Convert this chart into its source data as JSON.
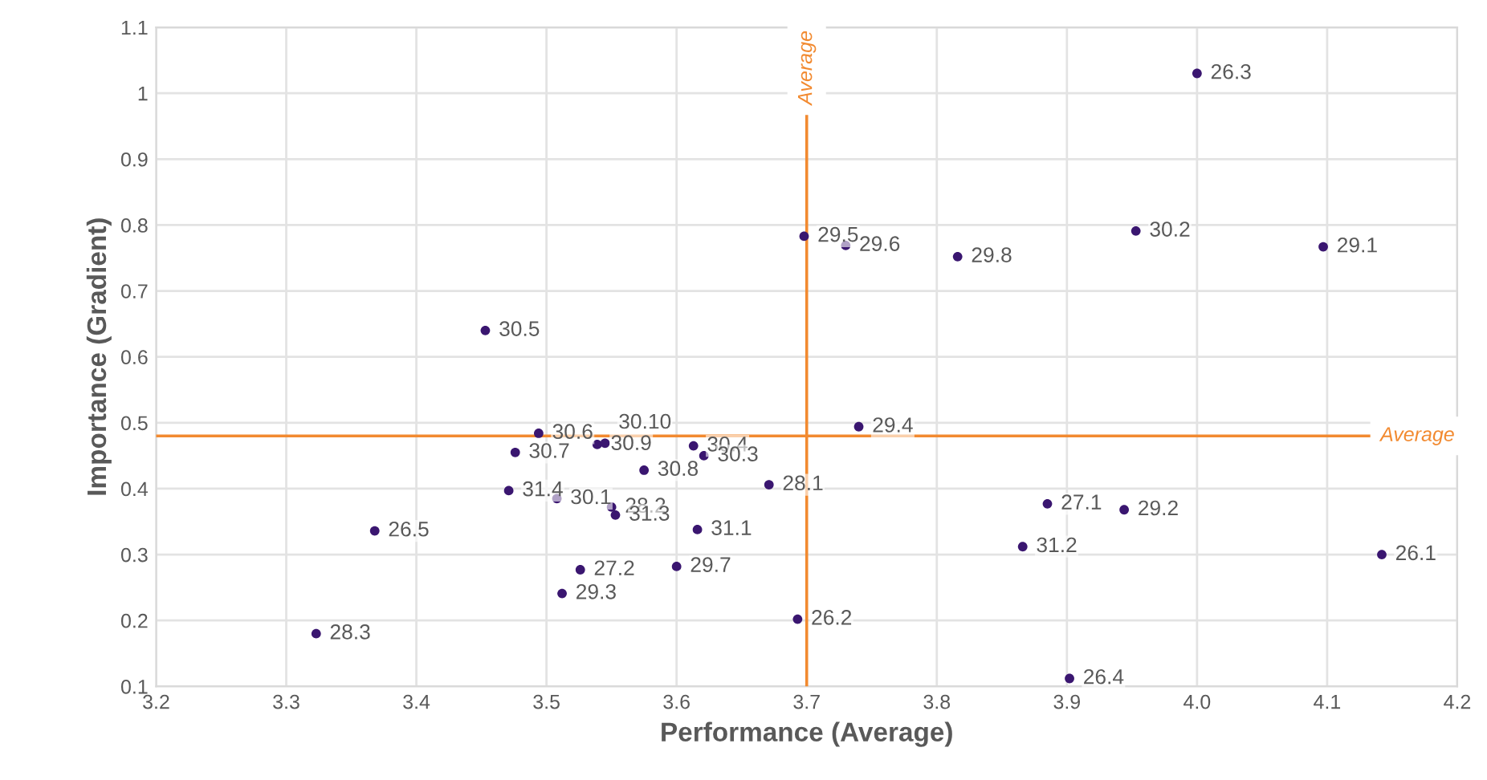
{
  "chart_data": {
    "type": "scatter",
    "xlabel": "Performance (Average)",
    "ylabel": "Importance (Gradient)",
    "xlim": [
      3.2,
      4.2
    ],
    "xticks": [
      {
        "value": 3.2,
        "label": "3.2"
      },
      {
        "value": 3.3,
        "label": "3.3"
      },
      {
        "value": 3.4,
        "label": "3.4"
      },
      {
        "value": 3.5,
        "label": "3.5"
      },
      {
        "value": 3.6,
        "label": "3.6"
      },
      {
        "value": 3.7,
        "label": "3.7"
      },
      {
        "value": 3.8,
        "label": "3.8"
      },
      {
        "value": 3.9,
        "label": "3.9"
      },
      {
        "value": 4.0,
        "label": "4.0"
      },
      {
        "value": 4.1,
        "label": "4.1"
      },
      {
        "value": 4.2,
        "label": "4.2"
      }
    ],
    "ylim": [
      0.1,
      1.1
    ],
    "yticks": [
      0.1,
      0.2,
      0.3,
      0.4,
      0.5,
      0.6,
      0.7,
      0.8,
      0.9,
      1,
      1.1
    ],
    "grid": true,
    "marker": "circle",
    "series": [
      {
        "color": "#3a1670",
        "x": [
          4.0,
          3.953,
          4.097,
          3.698,
          3.73,
          3.816,
          3.453,
          3.74,
          3.494,
          3.539,
          3.545,
          3.476,
          3.613,
          3.621,
          3.575,
          3.671,
          3.471,
          3.508,
          3.55,
          3.553,
          3.616,
          3.368,
          3.526,
          3.6,
          3.512,
          3.323,
          3.693,
          3.885,
          3.944,
          3.866,
          4.142,
          3.902
        ],
        "values": [
          1.03,
          0.791,
          0.767,
          0.783,
          0.769,
          0.752,
          0.64,
          0.494,
          0.484,
          0.467,
          0.469,
          0.455,
          0.465,
          0.45,
          0.428,
          0.406,
          0.397,
          0.385,
          0.372,
          0.36,
          0.338,
          0.336,
          0.277,
          0.282,
          0.241,
          0.18,
          0.202,
          0.377,
          0.368,
          0.312,
          0.3,
          0.112
        ]
      }
    ],
    "annotations": [
      {
        "text": "26.3",
        "x": 4.0,
        "y": 1.03
      },
      {
        "text": "30.2",
        "x": 3.953,
        "y": 0.791
      },
      {
        "text": "29.1",
        "x": 4.097,
        "y": 0.767
      },
      {
        "text": "29.5",
        "x": 3.698,
        "y": 0.783
      },
      {
        "text": "29.6",
        "x": 3.73,
        "y": 0.769
      },
      {
        "text": "29.8",
        "x": 3.816,
        "y": 0.752
      },
      {
        "text": "30.5",
        "x": 3.453,
        "y": 0.64
      },
      {
        "text": "29.4",
        "x": 3.74,
        "y": 0.494
      },
      {
        "text": "30.6",
        "x": 3.494,
        "y": 0.484
      },
      {
        "text": "30.9",
        "x": 3.539,
        "y": 0.467
      },
      {
        "text": "30.10",
        "x": 3.545,
        "y": 0.469
      },
      {
        "text": "30.7",
        "x": 3.476,
        "y": 0.455
      },
      {
        "text": "30.4",
        "x": 3.613,
        "y": 0.465
      },
      {
        "text": "30.3",
        "x": 3.621,
        "y": 0.45
      },
      {
        "text": "30.8",
        "x": 3.575,
        "y": 0.428
      },
      {
        "text": "28.1",
        "x": 3.671,
        "y": 0.406
      },
      {
        "text": "31.4",
        "x": 3.471,
        "y": 0.397
      },
      {
        "text": "30.1",
        "x": 3.508,
        "y": 0.385
      },
      {
        "text": "28.2",
        "x": 3.55,
        "y": 0.372
      },
      {
        "text": "31.3",
        "x": 3.553,
        "y": 0.36
      },
      {
        "text": "31.1",
        "x": 3.616,
        "y": 0.338
      },
      {
        "text": "26.5",
        "x": 3.368,
        "y": 0.336
      },
      {
        "text": "27.2",
        "x": 3.526,
        "y": 0.277
      },
      {
        "text": "29.7",
        "x": 3.6,
        "y": 0.282
      },
      {
        "text": "29.3",
        "x": 3.512,
        "y": 0.241
      },
      {
        "text": "28.3",
        "x": 3.323,
        "y": 0.18
      },
      {
        "text": "26.2",
        "x": 3.693,
        "y": 0.202
      },
      {
        "text": "27.1",
        "x": 3.885,
        "y": 0.377
      },
      {
        "text": "29.2",
        "x": 3.944,
        "y": 0.368
      },
      {
        "text": "31.2",
        "x": 3.866,
        "y": 0.312
      },
      {
        "text": "26.1",
        "x": 4.142,
        "y": 0.3
      },
      {
        "text": "26.4",
        "x": 3.902,
        "y": 0.112
      }
    ],
    "ref_lines": [
      {
        "axis": "x",
        "value": 3.7,
        "label": "Average",
        "color": "#f28a30"
      },
      {
        "axis": "y",
        "value": 0.48,
        "label": "Average",
        "color": "#f28a30"
      }
    ]
  }
}
